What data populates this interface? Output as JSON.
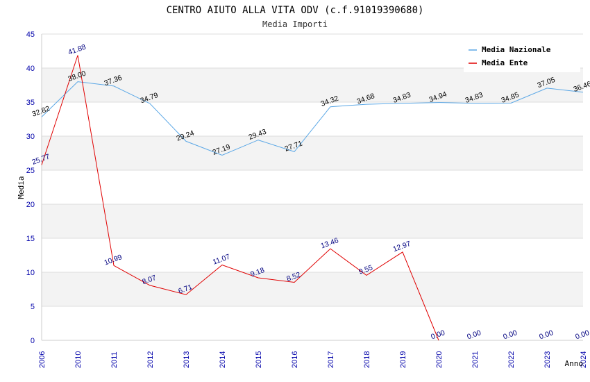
{
  "chart_data": {
    "type": "line",
    "title": "CENTRO AIUTO ALLA VITA ODV (c.f.91019390680)",
    "subtitle": "Media Importi",
    "xlabel": "Anno",
    "ylabel": "Media",
    "categories": [
      "2006",
      "2010",
      "2011",
      "2012",
      "2013",
      "2014",
      "2015",
      "2016",
      "2017",
      "2018",
      "2019",
      "2020",
      "2021",
      "2022",
      "2023",
      "2024"
    ],
    "ylim": [
      0,
      45
    ],
    "yticks": [
      0,
      5,
      10,
      15,
      20,
      25,
      30,
      35,
      40,
      45
    ],
    "grid": true,
    "legend_position": "top-right",
    "series": [
      {
        "name": "Media Nazionale",
        "color": "#5aa7e6",
        "values": [
          32.82,
          38.0,
          37.36,
          34.79,
          29.24,
          27.19,
          29.43,
          27.71,
          34.32,
          34.68,
          34.83,
          34.94,
          34.83,
          34.85,
          37.05,
          36.46
        ],
        "labels": [
          "32.82",
          "38.00",
          "37.36",
          "34.79",
          "29.24",
          "27.19",
          "29.43",
          "27.71",
          "34.32",
          "34.68",
          "34.83",
          "34.94",
          "34.83",
          "34.85",
          "37.05",
          "36.46"
        ]
      },
      {
        "name": "Media Ente",
        "color": "#e00000",
        "values": [
          25.77,
          41.88,
          10.99,
          8.07,
          6.71,
          11.07,
          9.18,
          8.52,
          13.46,
          9.55,
          12.97,
          0.0,
          null,
          null,
          null,
          null
        ],
        "labels": [
          "25.77",
          "41.88",
          "10.99",
          "8.07",
          "6.71",
          "11.07",
          "9.18",
          "8.52",
          "13.46",
          "9.55",
          "12.97",
          "0.00",
          "0.00",
          "0.00",
          "0.00",
          "0.00"
        ]
      }
    ]
  }
}
